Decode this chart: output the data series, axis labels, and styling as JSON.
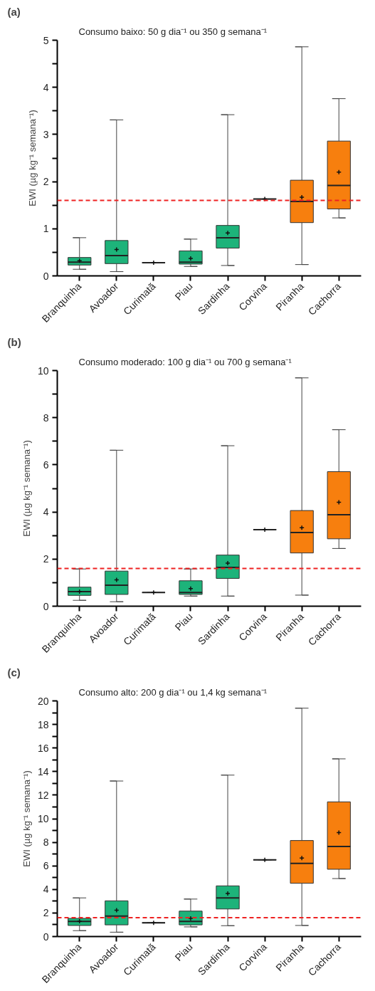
{
  "chart_data": [
    {
      "type": "box",
      "title": "(a)",
      "subtitle": "Consumo baixo: 50 g dia⁻¹ ou 350 g semana⁻¹",
      "ylabel": "EWI (µg kg⁻¹ semana⁻¹)",
      "categories": [
        "Branquinha",
        "Avoador",
        "Curimatã",
        "Piau",
        "Sardinha",
        "Corvina",
        "Piranha",
        "Cachorra"
      ],
      "colors": [
        "#1db37a",
        "#1db37a",
        "#333333",
        "#1db37a",
        "#1db37a",
        "#333333",
        "#f77f0e",
        "#f77f0e"
      ],
      "boxes": [
        {
          "low": 0.14,
          "q1": 0.23,
          "median": 0.29,
          "q3": 0.39,
          "high": 0.81,
          "mean": 0.32
        },
        {
          "low": 0.09,
          "q1": 0.26,
          "median": 0.43,
          "q3": 0.75,
          "high": 3.31,
          "mean": 0.56
        },
        {
          "low": 0.28,
          "q1": 0.28,
          "median": 0.28,
          "q3": 0.28,
          "high": 0.28,
          "mean": 0.28
        },
        {
          "low": 0.2,
          "q1": 0.25,
          "median": 0.29,
          "q3": 0.53,
          "high": 0.78,
          "mean": 0.37
        },
        {
          "low": 0.22,
          "q1": 0.59,
          "median": 0.81,
          "q3": 1.07,
          "high": 3.42,
          "mean": 0.91
        },
        {
          "low": 1.63,
          "q1": 1.63,
          "median": 1.63,
          "q3": 1.63,
          "high": 1.63,
          "mean": 1.63
        },
        {
          "low": 0.24,
          "q1": 1.13,
          "median": 1.58,
          "q3": 2.03,
          "high": 4.86,
          "mean": 1.67
        },
        {
          "low": 1.23,
          "q1": 1.42,
          "median": 1.92,
          "q3": 2.86,
          "high": 3.76,
          "mean": 2.2
        }
      ],
      "ylim": [
        0,
        5
      ],
      "yticks": [
        0,
        {
          "value": 0.5,
          "label": null
        },
        1,
        {
          "value": 1.5,
          "label": null
        },
        2,
        {
          "value": 2.5,
          "label": null
        },
        3,
        {
          "value": 3.5,
          "label": null
        },
        4,
        {
          "value": 4.5,
          "label": null
        },
        5
      ],
      "ref_lines": [
        {
          "axis": "y",
          "value": 1.6,
          "color": "#ee2222",
          "line_style": "dashed"
        }
      ],
      "grid": false
    },
    {
      "type": "box",
      "title": "(b)",
      "subtitle": "Consumo moderado: 100 g dia⁻¹ ou 700 g semana⁻¹",
      "ylabel": "EWI (µg kg⁻¹ semana⁻¹)",
      "categories": [
        "Branquinha",
        "Avoador",
        "Curimatã",
        "Piau",
        "Sardinha",
        "Corvina",
        "Piranha",
        "Cachorra"
      ],
      "colors": [
        "#1db37a",
        "#1db37a",
        "#333333",
        "#1db37a",
        "#1db37a",
        "#333333",
        "#f77f0e",
        "#f77f0e"
      ],
      "boxes": [
        {
          "low": 0.25,
          "q1": 0.46,
          "median": 0.62,
          "q3": 0.81,
          "high": 1.58,
          "mean": 0.62
        },
        {
          "low": 0.19,
          "q1": 0.5,
          "median": 0.89,
          "q3": 1.49,
          "high": 6.62,
          "mean": 1.12
        },
        {
          "low": 0.58,
          "q1": 0.58,
          "median": 0.58,
          "q3": 0.58,
          "high": 0.58,
          "mean": 0.58
        },
        {
          "low": 0.43,
          "q1": 0.5,
          "median": 0.58,
          "q3": 1.08,
          "high": 1.58,
          "mean": 0.75
        },
        {
          "low": 0.43,
          "q1": 1.18,
          "median": 1.65,
          "q3": 2.17,
          "high": 6.81,
          "mean": 1.83
        },
        {
          "low": 3.25,
          "q1": 3.25,
          "median": 3.25,
          "q3": 3.25,
          "high": 3.25,
          "mean": 3.25
        },
        {
          "low": 0.47,
          "q1": 2.26,
          "median": 3.13,
          "q3": 4.06,
          "high": 9.69,
          "mean": 3.33
        },
        {
          "low": 2.45,
          "q1": 2.86,
          "median": 3.88,
          "q3": 5.71,
          "high": 7.49,
          "mean": 4.41
        }
      ],
      "ylim": [
        0,
        10
      ],
      "yticks": [
        0,
        {
          "value": 1,
          "label": null
        },
        2,
        {
          "value": 3,
          "label": null
        },
        4,
        {
          "value": 5,
          "label": null
        },
        6,
        {
          "value": 7,
          "label": null
        },
        8,
        {
          "value": 9,
          "label": null
        },
        10
      ],
      "ref_lines": [
        {
          "axis": "y",
          "value": 1.6,
          "color": "#ee2222",
          "line_style": "dashed"
        }
      ],
      "grid": false
    },
    {
      "type": "box",
      "title": "(c)",
      "subtitle": "Consumo alto: 200 g dia⁻¹ ou 1,4 kg semana⁻¹",
      "ylabel": "EWI (µg kg⁻¹ semana⁻¹)",
      "categories": [
        "Branquinha",
        "Avoador",
        "Curimatã",
        "Piau",
        "Sardinha",
        "Corvina",
        "Piranha",
        "Cachorra"
      ],
      "colors": [
        "#1db37a",
        "#1db37a",
        "#333333",
        "#1db37a",
        "#1db37a",
        "#333333",
        "#f77f0e",
        "#f77f0e"
      ],
      "boxes": [
        {
          "low": 0.5,
          "q1": 0.94,
          "median": 1.29,
          "q3": 1.54,
          "high": 3.28,
          "mean": 1.3
        },
        {
          "low": 0.37,
          "q1": 0.99,
          "median": 1.74,
          "q3": 3.03,
          "high": 13.2,
          "mean": 2.24
        },
        {
          "low": 1.17,
          "q1": 1.17,
          "median": 1.17,
          "q3": 1.17,
          "high": 1.17,
          "mean": 1.17
        },
        {
          "low": 0.82,
          "q1": 0.99,
          "median": 1.29,
          "q3": 2.16,
          "high": 3.18,
          "mean": 1.54
        },
        {
          "low": 0.92,
          "q1": 2.34,
          "median": 3.28,
          "q3": 4.3,
          "high": 13.7,
          "mean": 3.65
        },
        {
          "low": 6.51,
          "q1": 6.51,
          "median": 6.51,
          "q3": 6.51,
          "high": 6.51,
          "mean": 6.51
        },
        {
          "low": 0.94,
          "q1": 4.52,
          "median": 6.21,
          "q3": 8.15,
          "high": 19.38,
          "mean": 6.66
        },
        {
          "low": 4.92,
          "q1": 5.71,
          "median": 7.65,
          "q3": 11.43,
          "high": 15.08,
          "mean": 8.82
        }
      ],
      "ylim": [
        0,
        20
      ],
      "yticks": [
        0,
        {
          "value": 1,
          "label": null
        },
        2,
        {
          "value": 3,
          "label": null
        },
        4,
        {
          "value": 5,
          "label": null
        },
        6,
        {
          "value": 7,
          "label": null
        },
        8,
        {
          "value": 9,
          "label": null
        },
        10,
        {
          "value": 11,
          "label": null
        },
        12,
        {
          "value": 13,
          "label": null
        },
        14,
        {
          "value": 15,
          "label": null
        },
        16,
        {
          "value": 17,
          "label": null
        },
        18,
        {
          "value": 19,
          "label": null
        },
        20
      ],
      "ref_lines": [
        {
          "axis": "y",
          "value": 1.6,
          "color": "#ee2222",
          "line_style": "dashed"
        }
      ],
      "grid": false
    }
  ]
}
